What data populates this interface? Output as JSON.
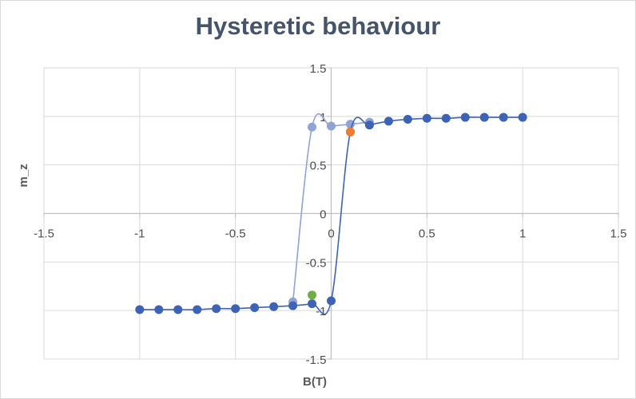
{
  "chart_data": {
    "type": "scatter",
    "title": "Hysteretic behaviour",
    "xlabel": "B(T)",
    "ylabel": "m_z",
    "xlim": [
      -1.5,
      1.5
    ],
    "ylim": [
      -1.5,
      1.5
    ],
    "x_ticks": [
      -1.5,
      -1,
      -0.5,
      0,
      0.5,
      1,
      1.5
    ],
    "y_ticks": [
      -1.5,
      -1,
      -0.5,
      0,
      0.5,
      1,
      1.5
    ],
    "grid": true,
    "smooth_lines": true,
    "series": [
      {
        "color": "#8fa4d4",
        "points": [
          [
            -0.2,
            -0.91
          ],
          [
            -0.1,
            0.89
          ],
          [
            0,
            0.9
          ],
          [
            0.1,
            0.92
          ],
          [
            0.2,
            0.94
          ]
        ]
      },
      {
        "color": "#3c63b5",
        "points": [
          [
            -1,
            -0.99
          ],
          [
            -0.9,
            -0.99
          ],
          [
            -0.8,
            -0.99
          ],
          [
            -0.7,
            -0.99
          ],
          [
            -0.6,
            -0.98
          ],
          [
            -0.5,
            -0.98
          ],
          [
            -0.4,
            -0.97
          ],
          [
            -0.3,
            -0.96
          ],
          [
            -0.2,
            -0.95
          ],
          [
            -0.1,
            -0.93
          ],
          [
            0,
            -0.9
          ],
          [
            0.1,
            0.84
          ],
          [
            0.2,
            0.91
          ],
          [
            0.3,
            0.95
          ],
          [
            0.4,
            0.97
          ],
          [
            0.5,
            0.98
          ],
          [
            0.6,
            0.98
          ],
          [
            0.7,
            0.99
          ],
          [
            0.8,
            0.99
          ],
          [
            0.9,
            0.99
          ],
          [
            1,
            0.99
          ]
        ]
      }
    ],
    "highlight_points": [
      {
        "x": -0.1,
        "y": -0.84,
        "color": "#70ad47"
      },
      {
        "x": 0.1,
        "y": 0.84,
        "color": "#ed7d31"
      }
    ]
  }
}
